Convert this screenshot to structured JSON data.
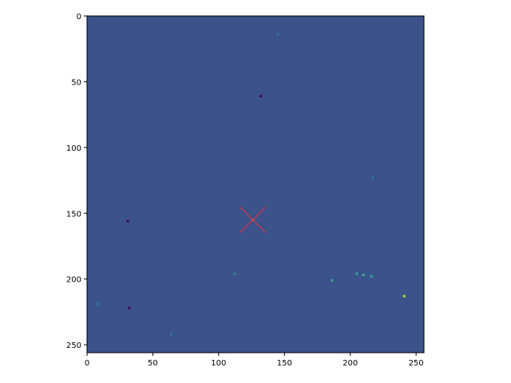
{
  "chart_data": {
    "type": "heatmap",
    "title": "",
    "xlabel": "",
    "ylabel": "",
    "xlim": [
      0,
      256
    ],
    "ylim": [
      256,
      0
    ],
    "y_inverted": true,
    "grid": false,
    "colormap": "viridis",
    "background_color": "#3b528b",
    "x_ticks": [
      0,
      50,
      100,
      150,
      200,
      250
    ],
    "y_ticks": [
      0,
      50,
      100,
      150,
      200,
      250
    ],
    "marker": {
      "shape": "x",
      "x": 126,
      "y": 155,
      "color": "#c03a52"
    },
    "features": [
      {
        "x": 126,
        "y": 155,
        "color": "#f0e442"
      },
      {
        "x": 241,
        "y": 213,
        "color": "#b5de2b"
      },
      {
        "x": 186,
        "y": 201,
        "color": "#3aa58f"
      },
      {
        "x": 205,
        "y": 196,
        "color": "#3aa58f"
      },
      {
        "x": 210,
        "y": 197,
        "color": "#3fae8b"
      },
      {
        "x": 216,
        "y": 198,
        "color": "#3aa58f"
      },
      {
        "x": 112,
        "y": 196,
        "color": "#2a8a8c"
      },
      {
        "x": 145,
        "y": 14,
        "color": "#2f7b8e"
      },
      {
        "x": 217,
        "y": 123,
        "color": "#2f7b8e"
      },
      {
        "x": 8,
        "y": 219,
        "color": "#2f7b8e"
      },
      {
        "x": 64,
        "y": 242,
        "color": "#2f7b8e"
      },
      {
        "x": 132,
        "y": 61,
        "color": "#440154"
      },
      {
        "x": 31,
        "y": 156,
        "color": "#440154"
      },
      {
        "x": 32,
        "y": 222,
        "color": "#440154"
      }
    ]
  }
}
